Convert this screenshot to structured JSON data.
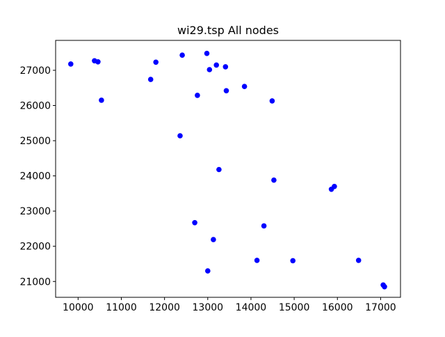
{
  "chart_data": {
    "type": "scatter",
    "title": "wi29.tsp All nodes",
    "xlabel": "",
    "ylabel": "",
    "xlim": [
      9480,
      17460
    ],
    "ylim": [
      20550,
      27850
    ],
    "xticks": [
      10000,
      11000,
      12000,
      13000,
      14000,
      15000,
      16000,
      17000
    ],
    "yticks": [
      21000,
      22000,
      23000,
      24000,
      25000,
      26000,
      27000
    ],
    "grid": false,
    "marker_color": "#0000ff",
    "points": [
      {
        "x": 9830,
        "y": 27180
      },
      {
        "x": 10380,
        "y": 27270
      },
      {
        "x": 10460,
        "y": 27240
      },
      {
        "x": 10540,
        "y": 26150
      },
      {
        "x": 11680,
        "y": 26740
      },
      {
        "x": 11800,
        "y": 27230
      },
      {
        "x": 12360,
        "y": 25140
      },
      {
        "x": 12410,
        "y": 27430
      },
      {
        "x": 12700,
        "y": 22670
      },
      {
        "x": 12760,
        "y": 26290
      },
      {
        "x": 12980,
        "y": 27480
      },
      {
        "x": 13000,
        "y": 21300
      },
      {
        "x": 13040,
        "y": 27020
      },
      {
        "x": 13130,
        "y": 22190
      },
      {
        "x": 13200,
        "y": 27150
      },
      {
        "x": 13260,
        "y": 24180
      },
      {
        "x": 13410,
        "y": 27100
      },
      {
        "x": 13430,
        "y": 26420
      },
      {
        "x": 13850,
        "y": 26540
      },
      {
        "x": 14140,
        "y": 21600
      },
      {
        "x": 14300,
        "y": 22580
      },
      {
        "x": 14490,
        "y": 26130
      },
      {
        "x": 14530,
        "y": 23880
      },
      {
        "x": 14970,
        "y": 21590
      },
      {
        "x": 15860,
        "y": 23620
      },
      {
        "x": 15930,
        "y": 23700
      },
      {
        "x": 16490,
        "y": 21600
      },
      {
        "x": 17060,
        "y": 20900
      },
      {
        "x": 17090,
        "y": 20850
      }
    ]
  }
}
